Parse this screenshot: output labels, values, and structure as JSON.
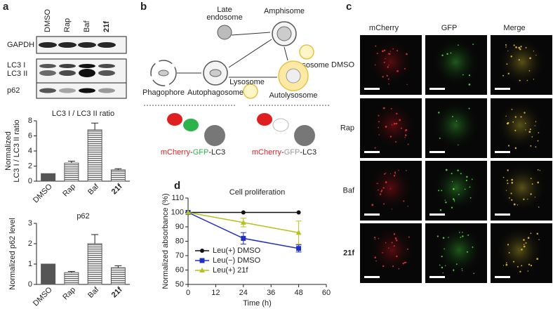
{
  "panel_labels": [
    "a",
    "b",
    "c",
    "d"
  ],
  "blot": {
    "lanes": [
      "DMSO",
      "Rap",
      "Baf",
      "21f"
    ],
    "rows": [
      "GAPDH",
      "LC3 I",
      "LC3 II",
      "p62"
    ]
  },
  "diagram": {
    "late_endosome": [
      "Late",
      "endosome"
    ],
    "amphisome": "Amphisome",
    "lysosome_top": "Lysosome",
    "lysosome_bottom": "Lysosome",
    "phagophore": "Phagophore",
    "autophagosome": "Autophagosome",
    "autolysosome": "Autolysosome",
    "reporters": [
      {
        "parts": [
          "mCherry",
          "-",
          "GFP",
          "-LC3"
        ],
        "colors": [
          "#e02020",
          "#222222",
          "#2db34a",
          "#222222"
        ]
      },
      {
        "parts": [
          "mCherry",
          "-",
          "GFP",
          "-LC3"
        ],
        "colors": [
          "#e02020",
          "#222222",
          "#999999",
          "#222222"
        ]
      }
    ]
  },
  "microscopy": {
    "columns": [
      "mCherry",
      "GFP",
      "Merge"
    ],
    "rows": [
      "DMSO",
      "Rap",
      "Baf",
      "21f"
    ]
  },
  "chart_data": [
    {
      "type": "bar",
      "title": "LC3 I / LC3 II ratio",
      "ylabel": [
        "Normalized",
        "LC3 I / LC3 II ratio"
      ],
      "categories": [
        "DMSO",
        "Rap",
        "Baf",
        "21f"
      ],
      "values": [
        1,
        2.4,
        6.8,
        1.5
      ],
      "errors": [
        0,
        0.25,
        0.9,
        0.15
      ],
      "color": "#555555",
      "ylim": [
        0,
        8
      ],
      "yticks": [
        0,
        2,
        4,
        6,
        8
      ]
    },
    {
      "type": "bar",
      "title": "p62",
      "ylabel": [
        "Normalized p62 level"
      ],
      "categories": [
        "DMSO",
        "Rap",
        "Baf",
        "21f"
      ],
      "values": [
        1,
        0.58,
        2.0,
        0.82
      ],
      "errors": [
        0,
        0.06,
        0.45,
        0.1
      ],
      "color": "#555555",
      "ylim": [
        0,
        3
      ],
      "yticks": [
        0,
        1,
        2,
        3
      ]
    },
    {
      "type": "line",
      "title": "Cell proliferation",
      "xlabel": "Time (h)",
      "ylabel": "Normalized absorbance (%)",
      "x": [
        0,
        24,
        48
      ],
      "xlim": [
        0,
        60
      ],
      "xticks": [
        0,
        12,
        24,
        36,
        48,
        60
      ],
      "ylim": [
        50,
        110
      ],
      "yticks": [
        50,
        60,
        70,
        80,
        90,
        100,
        110
      ],
      "legend": "lower left",
      "series": [
        {
          "name": "Leu(+) DMSO",
          "color": "#111111",
          "marker": "circle",
          "values": [
            100,
            100,
            100
          ],
          "errors": [
            0,
            0,
            0
          ]
        },
        {
          "name": "Leu(−) DMSO",
          "color": "#1f2fbf",
          "marker": "square",
          "values": [
            100,
            82,
            75
          ],
          "errors": [
            0,
            4,
            2.5
          ]
        },
        {
          "name": "Leu(+) 21f",
          "color": "#b5c21d",
          "marker": "triangle",
          "values": [
            100,
            93,
            86
          ],
          "errors": [
            0,
            3,
            8
          ]
        }
      ]
    }
  ]
}
